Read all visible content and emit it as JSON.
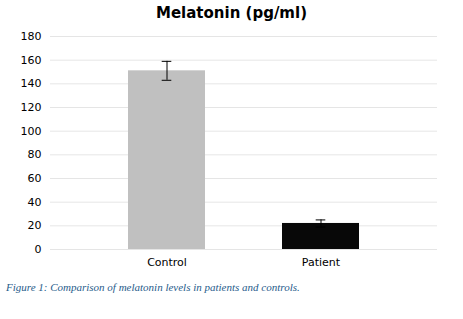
{
  "chart_data": {
    "type": "bar",
    "title": "Melatonin (pg/ml)",
    "categories": [
      "Control",
      "Patient"
    ],
    "values": [
      151,
      22
    ],
    "errors": [
      8,
      3
    ],
    "colors": [
      "#c0c0c0",
      "#080808"
    ],
    "ylim": [
      0,
      180
    ],
    "yticks": [
      0,
      20,
      40,
      60,
      80,
      100,
      120,
      140,
      160,
      180
    ],
    "grid": true,
    "caption": "Figure 1: Comparison of melatonin levels in patients and controls."
  }
}
